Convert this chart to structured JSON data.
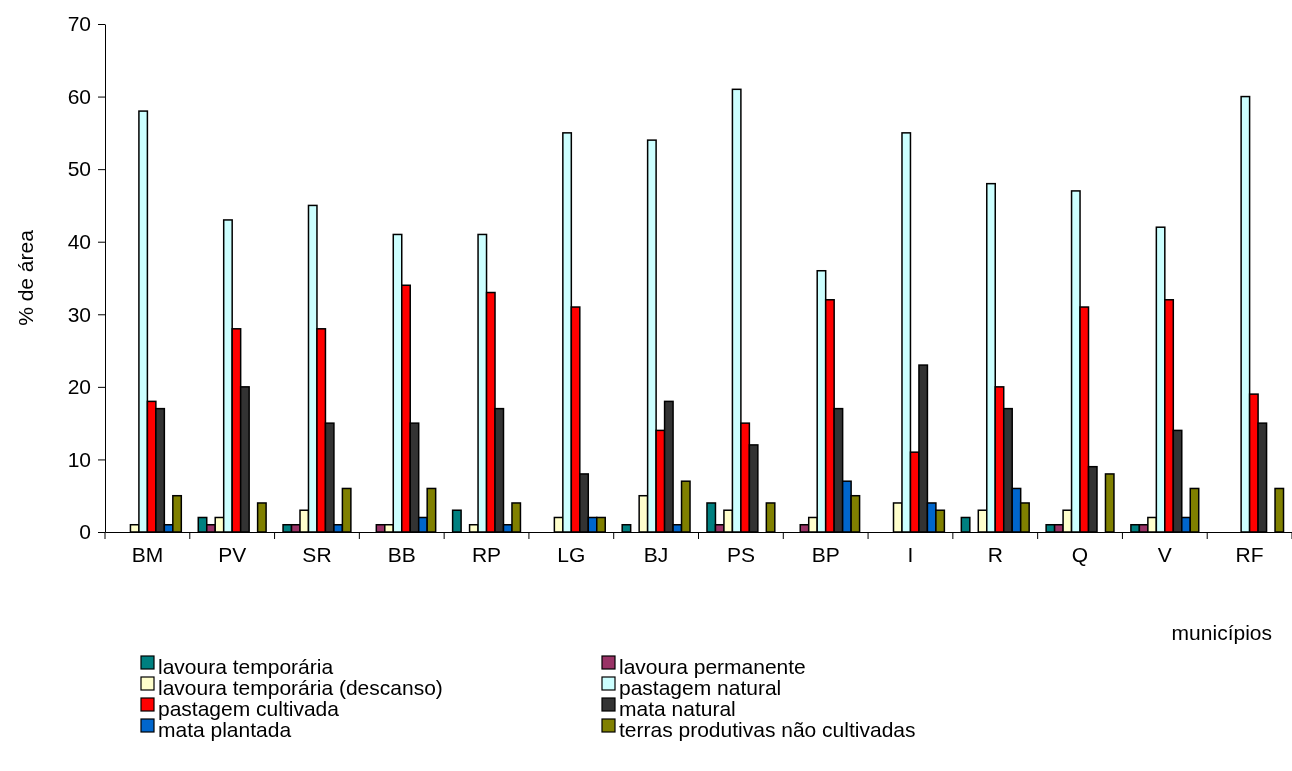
{
  "chart_data": {
    "type": "bar",
    "ylabel": "% de área",
    "xlabel": "municípios",
    "categories": [
      "BM",
      "PV",
      "SR",
      "BB",
      "RP",
      "LG",
      "BJ",
      "PS",
      "BP",
      "I",
      "R",
      "Q",
      "V",
      "RF"
    ],
    "ylim": [
      0,
      70
    ],
    "yticks": [
      0,
      10,
      20,
      30,
      40,
      50,
      60,
      70
    ],
    "grid": false,
    "legend": "bottom",
    "series": [
      {
        "name": "lavoura temporária",
        "color": "#008080",
        "values": [
          0,
          2,
          1,
          0,
          3,
          0,
          1,
          4,
          0,
          0,
          2,
          1,
          1,
          0
        ]
      },
      {
        "name": "lavoura permanente",
        "color": "#993366",
        "values": [
          0,
          1,
          1,
          1,
          0,
          0,
          0,
          1,
          1,
          0,
          0,
          1,
          1,
          0
        ]
      },
      {
        "name": "lavoura temporária (descanso)",
        "color": "#ffffcc",
        "values": [
          1,
          2,
          3,
          1,
          1,
          2,
          5,
          3,
          2,
          4,
          3,
          3,
          2,
          0
        ]
      },
      {
        "name": "pastagem natural",
        "color": "#ccffff",
        "values": [
          58,
          43,
          45,
          41,
          41,
          55,
          54,
          61,
          36,
          55,
          48,
          47,
          42,
          60
        ]
      },
      {
        "name": "pastagem cultivada",
        "color": "#ff0000",
        "values": [
          18,
          28,
          28,
          34,
          33,
          31,
          14,
          15,
          32,
          11,
          20,
          31,
          32,
          19
        ]
      },
      {
        "name": "mata natural",
        "color": "#333333",
        "values": [
          17,
          20,
          15,
          15,
          17,
          8,
          18,
          12,
          17,
          23,
          17,
          9,
          14,
          15
        ]
      },
      {
        "name": "mata plantada",
        "color": "#0066cc",
        "values": [
          1,
          0,
          1,
          2,
          1,
          2,
          1,
          0,
          7,
          4,
          6,
          0,
          2,
          0
        ]
      },
      {
        "name": "terras produtivas não cultivadas",
        "color": "#808000",
        "values": [
          5,
          4,
          6,
          6,
          4,
          2,
          7,
          4,
          5,
          3,
          4,
          8,
          6,
          6
        ]
      }
    ]
  }
}
